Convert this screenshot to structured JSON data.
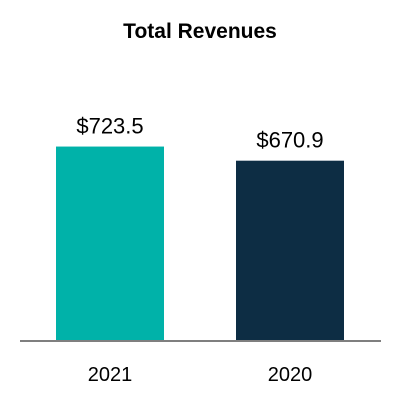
{
  "chart_data": {
    "type": "bar",
    "title": "Total Revenues",
    "xlabel": "",
    "ylabel": "",
    "categories": [
      "2021",
      "2020"
    ],
    "values": [
      723.5,
      670.9
    ],
    "data_labels": [
      "$723.5",
      "$670.9"
    ],
    "bar_colors": [
      "#00B2A9",
      "#0D2D44"
    ],
    "axis_color": "#7F7F7F",
    "ylim": [
      0,
      800
    ],
    "grid": false,
    "legend": "none"
  }
}
